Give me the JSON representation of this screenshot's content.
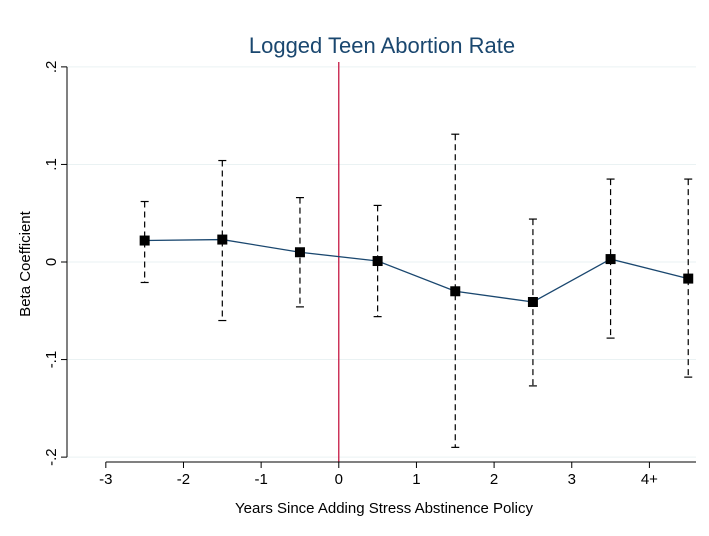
{
  "chart_data": {
    "type": "scatter",
    "title": "Logged Teen Abortion Rate",
    "xlabel": "Years Since Adding Stress Abstinence Policy",
    "ylabel": "Beta Coefficient",
    "xlim": [
      -3.5,
      4.6
    ],
    "ylim": [
      -0.205,
      0.205
    ],
    "x_ticks": [
      {
        "value": -3,
        "label": "-3"
      },
      {
        "value": -2,
        "label": "-2"
      },
      {
        "value": -1,
        "label": "-1"
      },
      {
        "value": 0,
        "label": "0"
      },
      {
        "value": 1,
        "label": "1"
      },
      {
        "value": 2,
        "label": "2"
      },
      {
        "value": 3,
        "label": "3"
      },
      {
        "value": 4,
        "label": "4+"
      }
    ],
    "y_ticks": [
      {
        "value": -0.2,
        "label": "-.2"
      },
      {
        "value": -0.1,
        "label": "-.1"
      },
      {
        "value": 0,
        "label": "0"
      },
      {
        "value": 0.1,
        "label": ".1"
      },
      {
        "value": 0.2,
        "label": ".2"
      }
    ],
    "grid": true,
    "reference_line_x": 0,
    "series": [
      {
        "points": [
          {
            "x": -2.5,
            "y": 0.022,
            "ci_low": -0.021,
            "ci_high": 0.062
          },
          {
            "x": -1.5,
            "y": 0.023,
            "ci_low": -0.06,
            "ci_high": 0.104
          },
          {
            "x": -0.5,
            "y": 0.01,
            "ci_low": -0.046,
            "ci_high": 0.066
          },
          {
            "x": 0.5,
            "y": 0.001,
            "ci_low": -0.056,
            "ci_high": 0.058
          },
          {
            "x": 1.5,
            "y": -0.03,
            "ci_low": -0.19,
            "ci_high": 0.131
          },
          {
            "x": 2.5,
            "y": -0.041,
            "ci_low": -0.127,
            "ci_high": 0.044
          },
          {
            "x": 3.5,
            "y": 0.003,
            "ci_low": -0.078,
            "ci_high": 0.085
          },
          {
            "x": 4.5,
            "y": -0.017,
            "ci_low": -0.118,
            "ci_high": 0.085
          }
        ]
      }
    ],
    "colors": {
      "title": "#1a476f",
      "line": "#1a476f",
      "marker": "#000000",
      "error_bar": "#000000",
      "reference_line": "#c10534",
      "grid": "#eaf2f3",
      "axis": "#000000"
    }
  }
}
